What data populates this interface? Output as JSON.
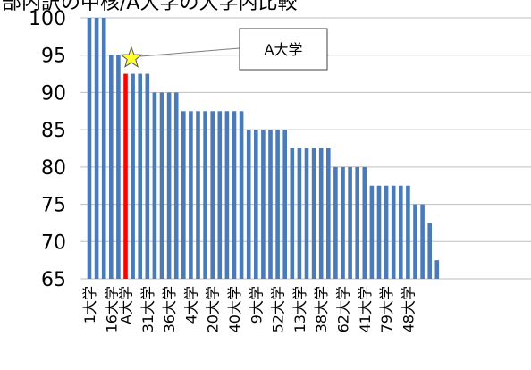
{
  "chart_data": {
    "type": "bar",
    "title": "部内訳の中核/A大学の大学内比較",
    "ylim": [
      65,
      100
    ],
    "yticks": [
      65,
      70,
      75,
      80,
      85,
      90,
      95,
      100
    ],
    "grid": true,
    "bar_color": "#4a7ab8",
    "highlight_color": "#ff0000",
    "highlight_index": 5,
    "values": [
      100,
      100,
      100,
      95,
      95,
      92.5,
      92.5,
      92.5,
      92.5,
      90,
      90,
      90,
      90,
      87.5,
      87.5,
      87.5,
      87.5,
      87.5,
      87.5,
      87.5,
      87.5,
      87.5,
      85,
      85,
      85,
      85,
      85,
      85,
      82.5,
      82.5,
      82.5,
      82.5,
      82.5,
      82.5,
      80,
      80,
      80,
      80,
      80,
      77.5,
      77.5,
      77.5,
      77.5,
      77.5,
      77.5,
      75,
      75,
      72.5,
      67.5
    ],
    "tick_labels": [
      "1大学",
      "16大学",
      "A大学",
      "31大学",
      "36大学",
      "4大学",
      "20大学",
      "40大学",
      "9大学",
      "52大学",
      "13大学",
      "38大学",
      "62大学",
      "41大学",
      "79大学",
      "48大学"
    ],
    "tick_positions": [
      0,
      3,
      5,
      8,
      11,
      14,
      17,
      20,
      23,
      26,
      29,
      32,
      35,
      38,
      41,
      44
    ],
    "annotation": {
      "label": "A大学",
      "marker": "star",
      "marker_color": "#ffff33",
      "target_index": 5
    }
  }
}
